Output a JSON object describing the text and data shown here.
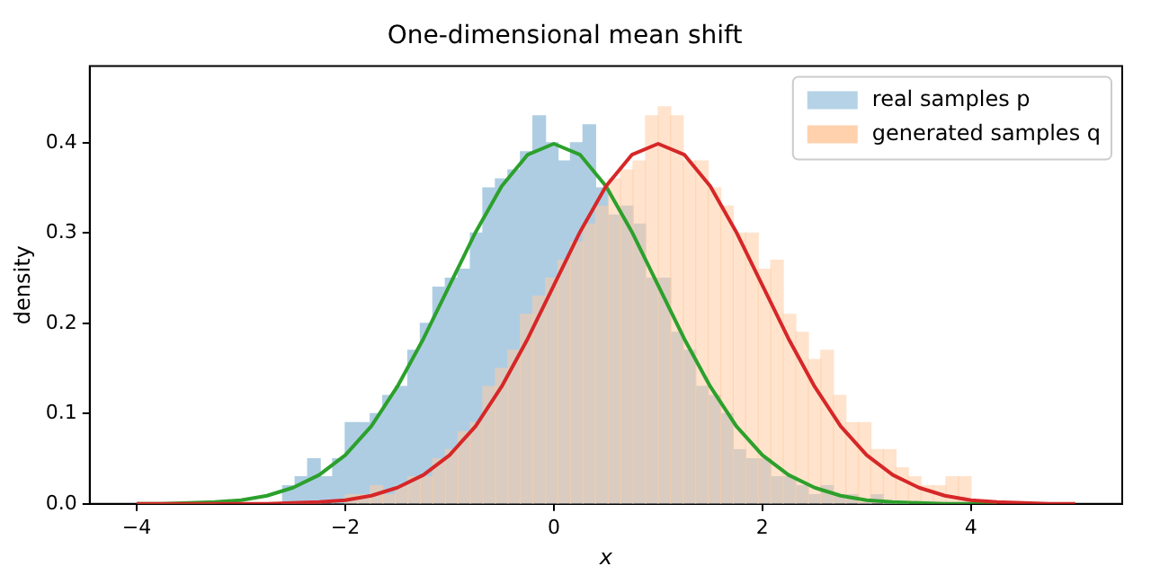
{
  "chart_data": {
    "type": "histogram",
    "title": "One-dimensional mean shift",
    "xlabel": "x",
    "ylabel": "density",
    "xlim": [
      -4.45,
      5.45
    ],
    "ylim": [
      0,
      0.485
    ],
    "xticks": [
      {
        "value": -4,
        "label": "−4"
      },
      {
        "value": -2,
        "label": "−2"
      },
      0,
      2,
      4
    ],
    "yticks": [
      {
        "value": 0,
        "label": "0.0"
      },
      {
        "value": 0.1,
        "label": "0.1"
      },
      {
        "value": 0.2,
        "label": "0.2"
      },
      {
        "value": 0.3,
        "label": "0.3"
      },
      {
        "value": 0.4,
        "label": "0.4"
      }
    ],
    "legend": "top right",
    "grid": false,
    "series": [
      {
        "type": "histogram",
        "name": "real samples p",
        "color": "#aecde3",
        "bins": [
          -2.6,
          -2.48,
          -2.36,
          -2.24,
          -2.12,
          -2.0,
          -1.88,
          -1.76,
          -1.64,
          -1.52,
          -1.4,
          -1.28,
          -1.16,
          -1.04,
          -0.92,
          -0.8,
          -0.68,
          -0.56,
          -0.44,
          -0.32,
          -0.2,
          -0.08,
          0.04,
          0.16,
          0.28,
          0.4,
          0.52,
          0.64,
          0.76,
          0.88,
          1.0,
          1.12,
          1.24,
          1.36,
          1.48,
          1.6,
          1.72,
          1.84,
          1.96,
          2.08,
          2.2,
          2.32,
          2.44,
          2.56,
          2.68,
          2.8,
          2.92,
          3.04,
          3.16,
          3.28,
          3.4
        ],
        "values": [
          0.02,
          0.03,
          0.05,
          0.03,
          0.05,
          0.09,
          0.09,
          0.1,
          0.12,
          0.13,
          0.17,
          0.2,
          0.24,
          0.25,
          0.26,
          0.3,
          0.35,
          0.36,
          0.37,
          0.39,
          0.43,
          0.4,
          0.38,
          0.4,
          0.42,
          0.35,
          0.32,
          0.33,
          0.31,
          0.25,
          0.25,
          0.19,
          0.17,
          0.13,
          0.12,
          0.1,
          0.06,
          0.05,
          0.05,
          0.03,
          0.03,
          0.02,
          0.01,
          0.02,
          0.01,
          0.01,
          0.0,
          0.01,
          0.0,
          0.0
        ]
      },
      {
        "type": "histogram",
        "name": "generated samples q",
        "color": "#ffcca4",
        "bins": [
          -2.0,
          -1.88,
          -1.76,
          -1.64,
          -1.52,
          -1.4,
          -1.28,
          -1.16,
          -1.04,
          -0.92,
          -0.8,
          -0.68,
          -0.56,
          -0.44,
          -0.32,
          -0.2,
          -0.08,
          0.04,
          0.16,
          0.28,
          0.4,
          0.52,
          0.64,
          0.76,
          0.88,
          1.0,
          1.12,
          1.24,
          1.36,
          1.48,
          1.6,
          1.72,
          1.84,
          1.96,
          2.08,
          2.2,
          2.32,
          2.44,
          2.56,
          2.68,
          2.8,
          2.92,
          3.04,
          3.16,
          3.28,
          3.4,
          3.52,
          3.64,
          3.76,
          3.88,
          4.0
        ],
        "values": [
          0.01,
          0.01,
          0.02,
          0.01,
          0.02,
          0.03,
          0.03,
          0.05,
          0.06,
          0.08,
          0.09,
          0.13,
          0.15,
          0.17,
          0.21,
          0.23,
          0.25,
          0.27,
          0.29,
          0.31,
          0.33,
          0.36,
          0.37,
          0.38,
          0.43,
          0.44,
          0.43,
          0.38,
          0.38,
          0.35,
          0.33,
          0.3,
          0.3,
          0.26,
          0.27,
          0.21,
          0.19,
          0.16,
          0.17,
          0.12,
          0.09,
          0.09,
          0.06,
          0.06,
          0.04,
          0.03,
          0.02,
          0.02,
          0.03,
          0.03
        ]
      },
      {
        "type": "line",
        "color": "#2ca02c",
        "x": [
          -4,
          -3.75,
          -3.5,
          -3.25,
          -3,
          -2.75,
          -2.5,
          -2.25,
          -2,
          -1.75,
          -1.5,
          -1.25,
          -1,
          -0.75,
          -0.5,
          -0.25,
          0,
          0.25,
          0.5,
          0.75,
          1,
          1.25,
          1.5,
          1.75,
          2,
          2.25,
          2.5,
          2.75,
          3,
          3.25,
          3.5,
          3.75,
          4,
          4.25
        ],
        "values": [
          0,
          0,
          0.001,
          0.002,
          0.004,
          0.009,
          0.018,
          0.032,
          0.054,
          0.086,
          0.13,
          0.183,
          0.242,
          0.301,
          0.352,
          0.387,
          0.399,
          0.387,
          0.352,
          0.301,
          0.242,
          0.183,
          0.13,
          0.086,
          0.054,
          0.032,
          0.018,
          0.009,
          0.004,
          0.002,
          0.001,
          0,
          0,
          0
        ]
      },
      {
        "type": "line",
        "color": "#d62728",
        "x": [
          -4,
          -3.75,
          -3.5,
          -3.25,
          -3,
          -2.75,
          -2.5,
          -2.25,
          -2,
          -1.75,
          -1.5,
          -1.25,
          -1,
          -0.75,
          -0.5,
          -0.25,
          0,
          0.25,
          0.5,
          0.75,
          1,
          1.25,
          1.5,
          1.75,
          2,
          2.25,
          2.5,
          2.75,
          3,
          3.25,
          3.5,
          3.75,
          4,
          4.25,
          4.5,
          4.75,
          5
        ],
        "values": [
          0,
          0,
          0,
          0,
          0,
          0,
          0.001,
          0.002,
          0.004,
          0.009,
          0.018,
          0.032,
          0.054,
          0.086,
          0.13,
          0.183,
          0.242,
          0.301,
          0.352,
          0.387,
          0.399,
          0.387,
          0.352,
          0.301,
          0.242,
          0.183,
          0.13,
          0.086,
          0.054,
          0.032,
          0.018,
          0.009,
          0.004,
          0.002,
          0.001,
          0,
          0
        ]
      }
    ]
  }
}
